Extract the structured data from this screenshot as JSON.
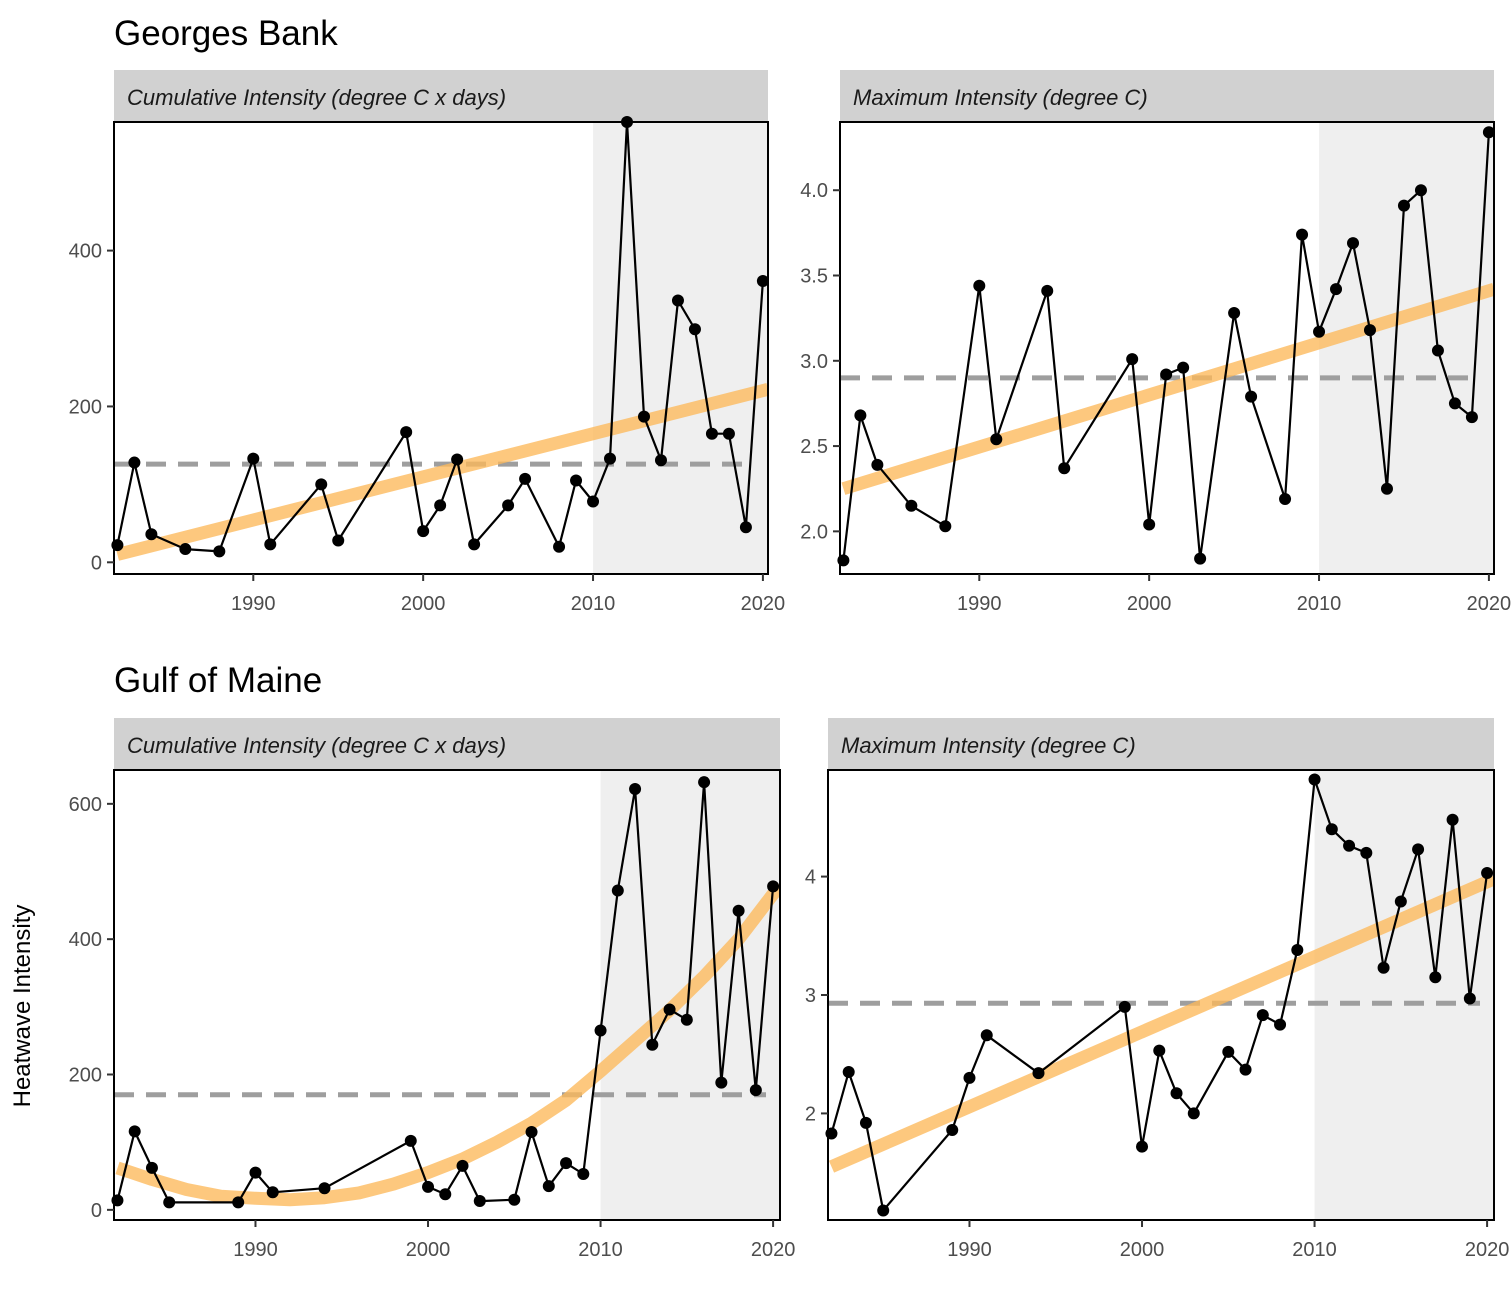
{
  "figure": {
    "ylabel": "Heatwave Intensity",
    "colors": {
      "trend": "#FDB95A",
      "reference": "#9e9e9e",
      "series": "#000000",
      "shade": "#efefef",
      "strip": "#d1d1d1"
    }
  },
  "chart_data": [
    {
      "type": "line",
      "region": "Georges Bank",
      "title": "Georges Bank",
      "strip": "Cumulative Intensity (degree C x days)",
      "xlim": [
        1981.8,
        2020.3
      ],
      "ylim": [
        -15,
        565
      ],
      "xticks": [
        1990,
        2000,
        2010,
        2020
      ],
      "yticks": [
        0,
        200,
        400
      ],
      "shade_from": 2010,
      "reference_line": 126,
      "trend": {
        "kind": "linear",
        "x": [
          1982,
          2020.3
        ],
        "y": [
          10,
          222
        ]
      },
      "x": [
        1982,
        1983,
        1984,
        1986,
        1988,
        1990,
        1991,
        1994,
        1995,
        1999,
        2000,
        2001,
        2002,
        2003,
        2005,
        2006,
        2008,
        2009,
        2010,
        2011,
        2012,
        2013,
        2014,
        2015,
        2016,
        2017,
        2018,
        2019,
        2020
      ],
      "y": [
        22,
        128,
        36,
        17,
        14,
        133,
        23,
        100,
        28,
        167,
        40,
        73,
        132,
        23,
        73,
        107,
        20,
        105,
        78,
        133,
        565,
        187,
        131,
        336,
        299,
        165,
        165,
        45,
        361
      ]
    },
    {
      "type": "line",
      "region": "Georges Bank",
      "title": "",
      "strip": "Maximum Intensity (degree C)",
      "xlim": [
        1981.8,
        2020.3
      ],
      "ylim": [
        1.75,
        4.4
      ],
      "xticks": [
        1990,
        2000,
        2010,
        2020
      ],
      "yticks": [
        2.0,
        2.5,
        3.0,
        3.5,
        4.0
      ],
      "ytick_labels": [
        "2.0",
        "2.5",
        "3.0",
        "3.5",
        "4.0"
      ],
      "shade_from": 2010,
      "reference_line": 2.9,
      "trend": {
        "kind": "linear",
        "x": [
          1982,
          2020.3
        ],
        "y": [
          2.25,
          3.42
        ]
      },
      "x": [
        1982,
        1983,
        1984,
        1986,
        1988,
        1990,
        1991,
        1994,
        1995,
        1999,
        2000,
        2001,
        2002,
        2003,
        2005,
        2006,
        2008,
        2009,
        2010,
        2011,
        2012,
        2013,
        2014,
        2015,
        2016,
        2017,
        2018,
        2019,
        2020
      ],
      "y": [
        1.83,
        2.68,
        2.39,
        2.15,
        2.03,
        3.44,
        2.54,
        3.41,
        2.37,
        3.01,
        2.04,
        2.92,
        2.96,
        1.84,
        3.28,
        2.79,
        2.19,
        3.74,
        3.17,
        3.42,
        3.69,
        3.18,
        2.25,
        3.91,
        4.0,
        3.06,
        2.75,
        2.67,
        4.34
      ]
    },
    {
      "type": "line",
      "region": "Gulf of Maine",
      "title": "Gulf of Maine",
      "strip": "Cumulative Intensity (degree C x days)",
      "xlim": [
        1981.8,
        2020.4
      ],
      "ylim": [
        -15,
        650
      ],
      "xticks": [
        1990,
        2000,
        2010,
        2020
      ],
      "yticks": [
        0,
        200,
        400,
        600
      ],
      "shade_from": 2010,
      "reference_line": 170,
      "trend": {
        "kind": "smooth",
        "x": [
          1982,
          1984,
          1986,
          1988,
          1990,
          1992,
          1994,
          1996,
          1998,
          2000,
          2002,
          2004,
          2006,
          2008,
          2010,
          2012,
          2014,
          2016,
          2018,
          2020.4
        ],
        "y": [
          62,
          45,
          30,
          20,
          17,
          15,
          18,
          25,
          38,
          55,
          75,
          100,
          128,
          162,
          205,
          250,
          295,
          345,
          400,
          480
        ]
      },
      "x": [
        1982,
        1983,
        1984,
        1985,
        1989,
        1990,
        1991,
        1994,
        1999,
        2000,
        2001,
        2002,
        2003,
        2005,
        2006,
        2007,
        2008,
        2009,
        2010,
        2011,
        2012,
        2013,
        2014,
        2015,
        2016,
        2017,
        2018,
        2019,
        2020
      ],
      "y": [
        14,
        116,
        62,
        11,
        11,
        55,
        26,
        32,
        102,
        34,
        23,
        65,
        13,
        15,
        115,
        35,
        69,
        53,
        265,
        472,
        622,
        244,
        296,
        281,
        632,
        188,
        442,
        177,
        478
      ]
    },
    {
      "type": "line",
      "region": "Gulf of Maine",
      "title": "",
      "strip": "Maximum Intensity (degree C)",
      "xlim": [
        1981.8,
        2020.4
      ],
      "ylim": [
        1.1,
        4.9
      ],
      "xticks": [
        1990,
        2000,
        2010,
        2020
      ],
      "yticks": [
        2,
        3,
        4
      ],
      "shade_from": 2010,
      "reference_line": 2.93,
      "trend": {
        "kind": "linear",
        "x": [
          1982,
          2020.4
        ],
        "y": [
          1.55,
          3.98
        ]
      },
      "x": [
        1982,
        1983,
        1984,
        1985,
        1989,
        1990,
        1991,
        1994,
        1999,
        2000,
        2001,
        2002,
        2003,
        2005,
        2006,
        2007,
        2008,
        2009,
        2010,
        2011,
        2012,
        2013,
        2014,
        2015,
        2016,
        2017,
        2018,
        2019,
        2020
      ],
      "y": [
        1.83,
        2.35,
        1.92,
        1.18,
        1.86,
        2.3,
        2.66,
        2.34,
        2.9,
        1.72,
        2.53,
        2.17,
        2.0,
        2.52,
        2.37,
        2.83,
        2.75,
        3.38,
        4.82,
        4.4,
        4.26,
        4.2,
        3.23,
        3.79,
        4.23,
        3.15,
        4.48,
        2.97,
        4.03
      ]
    }
  ]
}
